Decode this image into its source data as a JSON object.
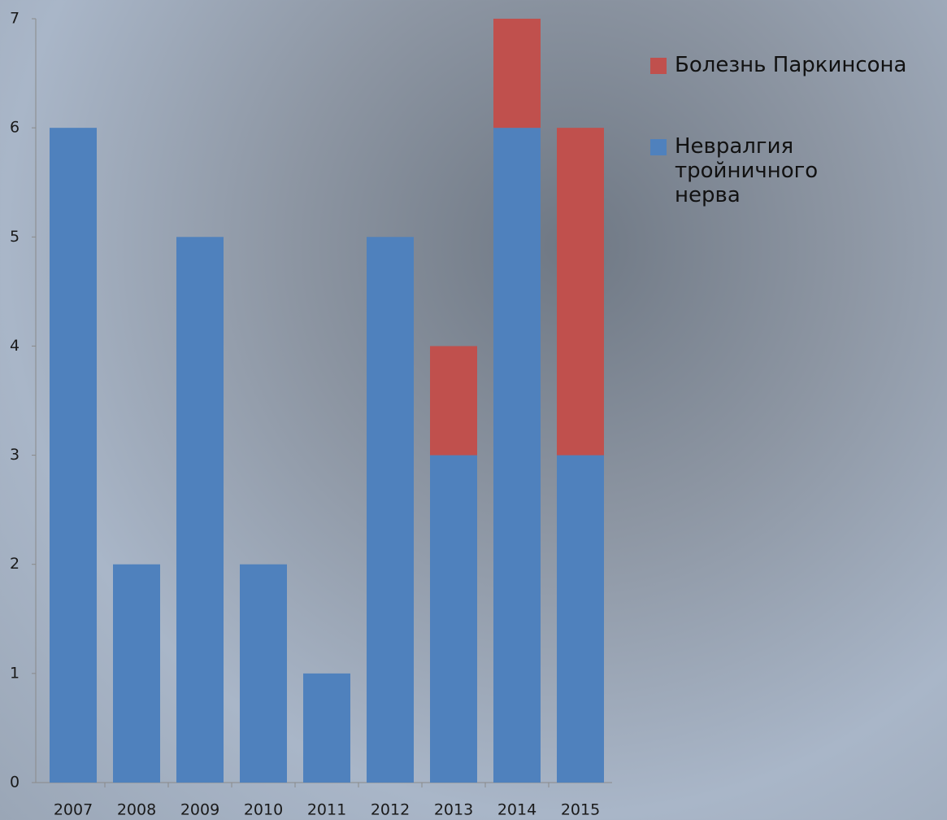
{
  "chart_data": {
    "type": "stacked_bar",
    "categories": [
      "2007",
      "2008",
      "2009",
      "2010",
      "2011",
      "2012",
      "2013",
      "2014",
      "2015"
    ],
    "series": [
      {
        "name": "Невралгия тройничного нерва",
        "color": "#4f81bd",
        "values": [
          6,
          2,
          5,
          2,
          1,
          5,
          3,
          6,
          3
        ]
      },
      {
        "name": "Болезнь Паркинсона",
        "color": "#c0504d",
        "values": [
          0,
          0,
          0,
          0,
          0,
          0,
          1,
          1,
          3
        ]
      }
    ],
    "ylim": [
      0,
      7
    ],
    "yticks": [
      0,
      1,
      2,
      3,
      4,
      5,
      6,
      7
    ],
    "grid": false,
    "legend": "right"
  }
}
